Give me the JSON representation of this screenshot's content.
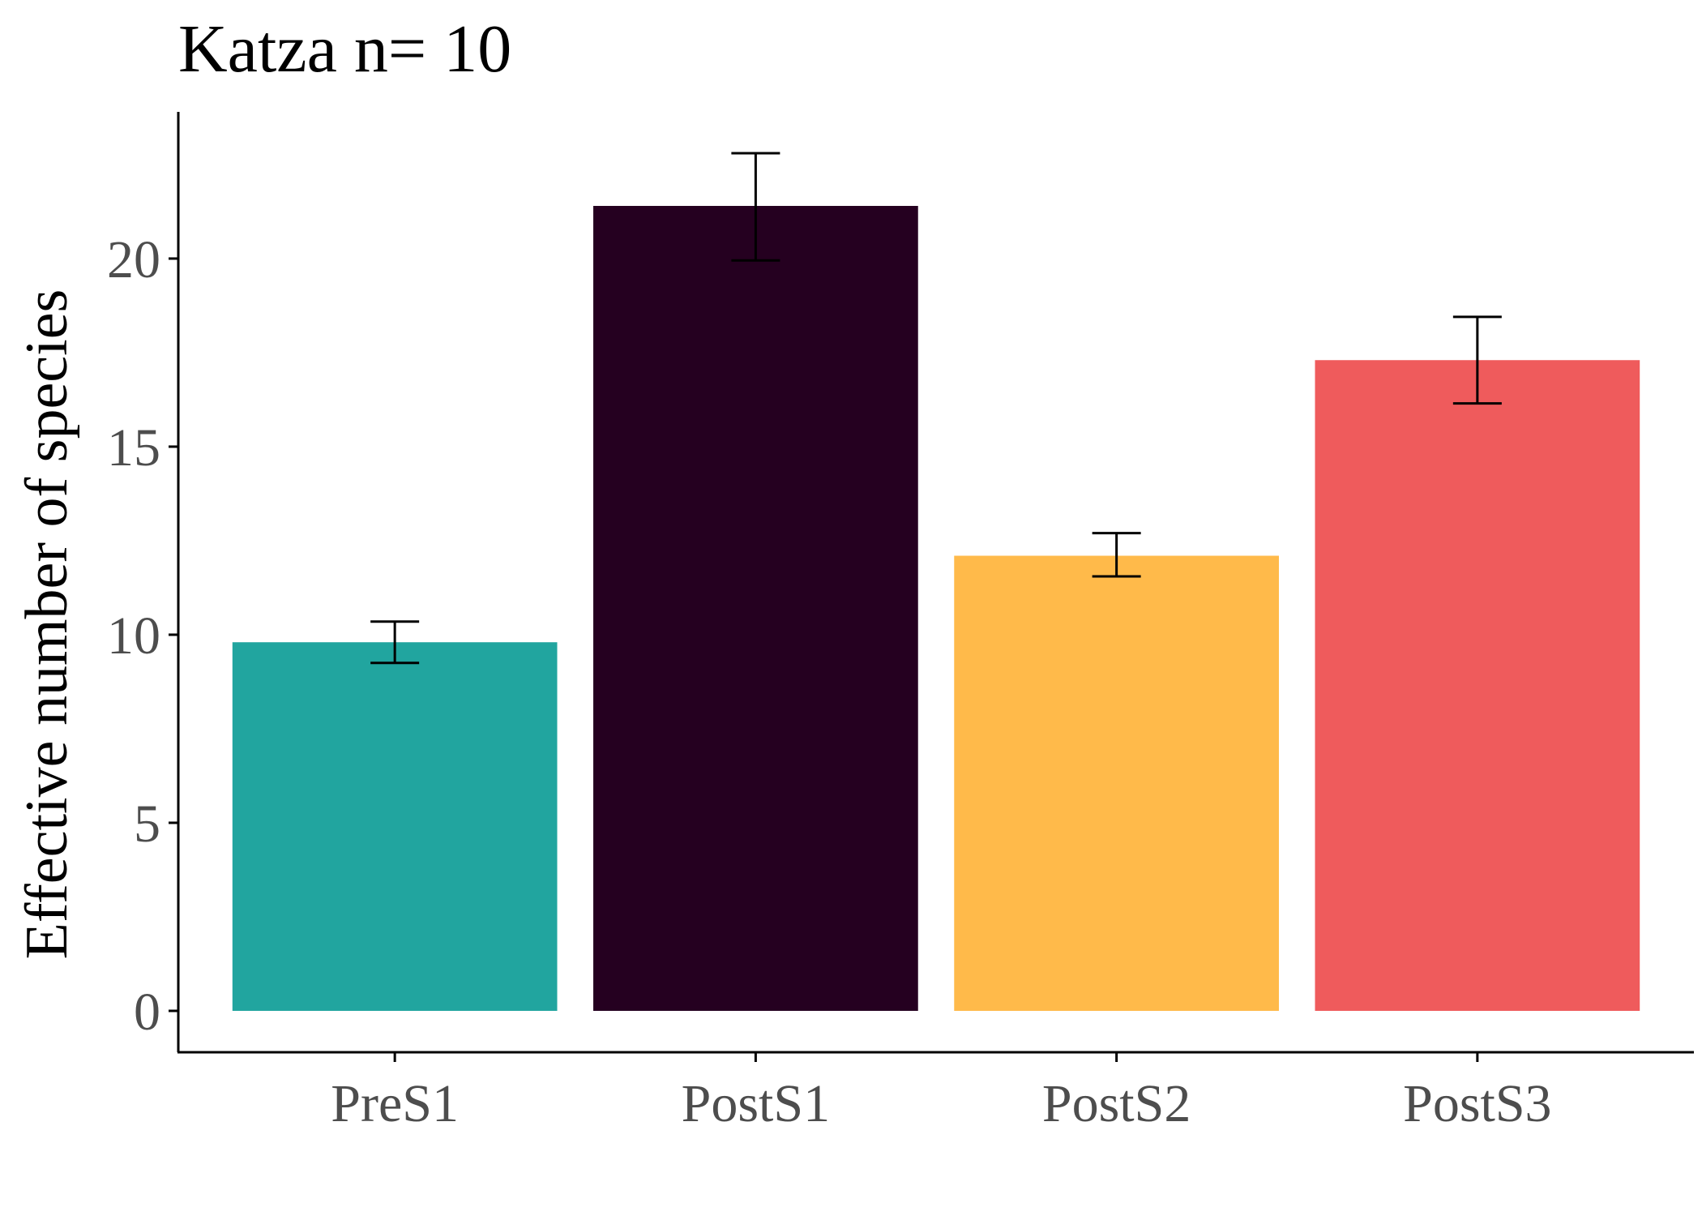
{
  "chart_data": {
    "type": "bar",
    "title": "Katza  n= 10",
    "xlabel": "",
    "ylabel": "Effective number of species",
    "categories": [
      "PreS1",
      "PostS1",
      "PostS2",
      "PostS3"
    ],
    "values": [
      9.8,
      21.4,
      12.1,
      17.3
    ],
    "error_low": [
      9.25,
      19.95,
      11.55,
      16.15
    ],
    "error_high": [
      10.35,
      22.8,
      12.7,
      18.45
    ],
    "colors": [
      "#21a59f",
      "#250020",
      "#ffba4a",
      "#ef5b5c"
    ],
    "ylim": [
      -1.1,
      23.9
    ],
    "yticks": [
      0,
      5,
      10,
      15,
      20
    ],
    "ytick_labels": [
      "0",
      "5",
      "10",
      "15",
      "20"
    ],
    "grid": false,
    "legend": "none"
  }
}
